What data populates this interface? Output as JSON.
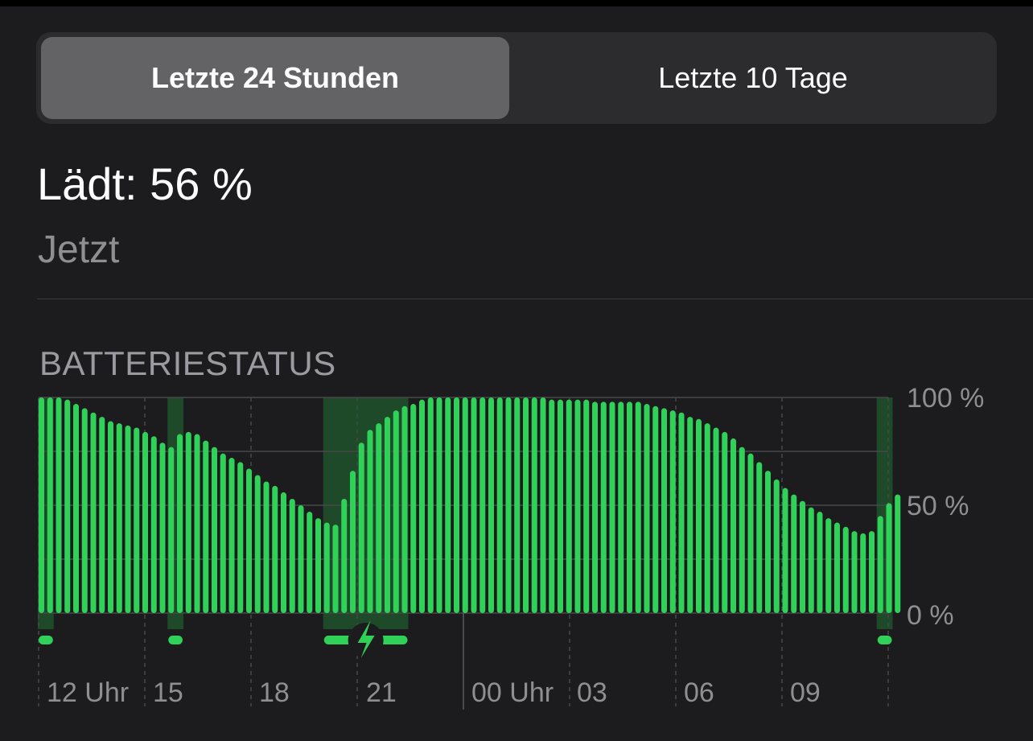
{
  "segmented": {
    "options": [
      "Letzte 24 Stunden",
      "Letzte 10 Tage"
    ],
    "selected_index": 0
  },
  "status": {
    "title": "Lädt: 56 %",
    "subtitle": "Jetzt"
  },
  "section": {
    "label": "BATTERIESTATUS"
  },
  "colors": {
    "background": "#1c1c1e",
    "bar": "#30d158",
    "charging_band": "#1f4a2a",
    "grid": "#48484a",
    "axis_text": "#8e8e93"
  },
  "chart_data": {
    "type": "bar",
    "y_axis": {
      "ticks": [
        "100 %",
        "50 %",
        "0 %"
      ],
      "ylim": [
        0,
        100
      ],
      "position": "right"
    },
    "x_axis": {
      "labels": [
        "12 Uhr",
        "15",
        "18",
        "21",
        "00 Uhr",
        "03",
        "06",
        "09"
      ]
    },
    "values": [
      100,
      100,
      100,
      99,
      97,
      95,
      93,
      91,
      89,
      88,
      87,
      86,
      84,
      82,
      79,
      77,
      83,
      84,
      83,
      80,
      77,
      74,
      72,
      70,
      67,
      64,
      61,
      59,
      56,
      53,
      50,
      47,
      44,
      42,
      41,
      53,
      66,
      79,
      85,
      88,
      91,
      94,
      96,
      97,
      99,
      100,
      100,
      100,
      100,
      100,
      100,
      100,
      100,
      100,
      100,
      100,
      100,
      100,
      100,
      99,
      99,
      99,
      99,
      99,
      98,
      98,
      98,
      98,
      98,
      98,
      97,
      96,
      95,
      94,
      93,
      91,
      90,
      88,
      86,
      84,
      81,
      77,
      74,
      70,
      66,
      62,
      58,
      55,
      52,
      49,
      47,
      44,
      42,
      40,
      38,
      37,
      38,
      45,
      51,
      55
    ],
    "charging_periods": [
      {
        "start_index": 0,
        "end_index": 1,
        "icon": null
      },
      {
        "start_index": 15,
        "end_index": 16,
        "icon": null
      },
      {
        "start_index": 33,
        "end_index": 42,
        "icon": "lightning-bolt-icon"
      },
      {
        "start_index": 97,
        "end_index": 98,
        "icon": null
      }
    ]
  }
}
